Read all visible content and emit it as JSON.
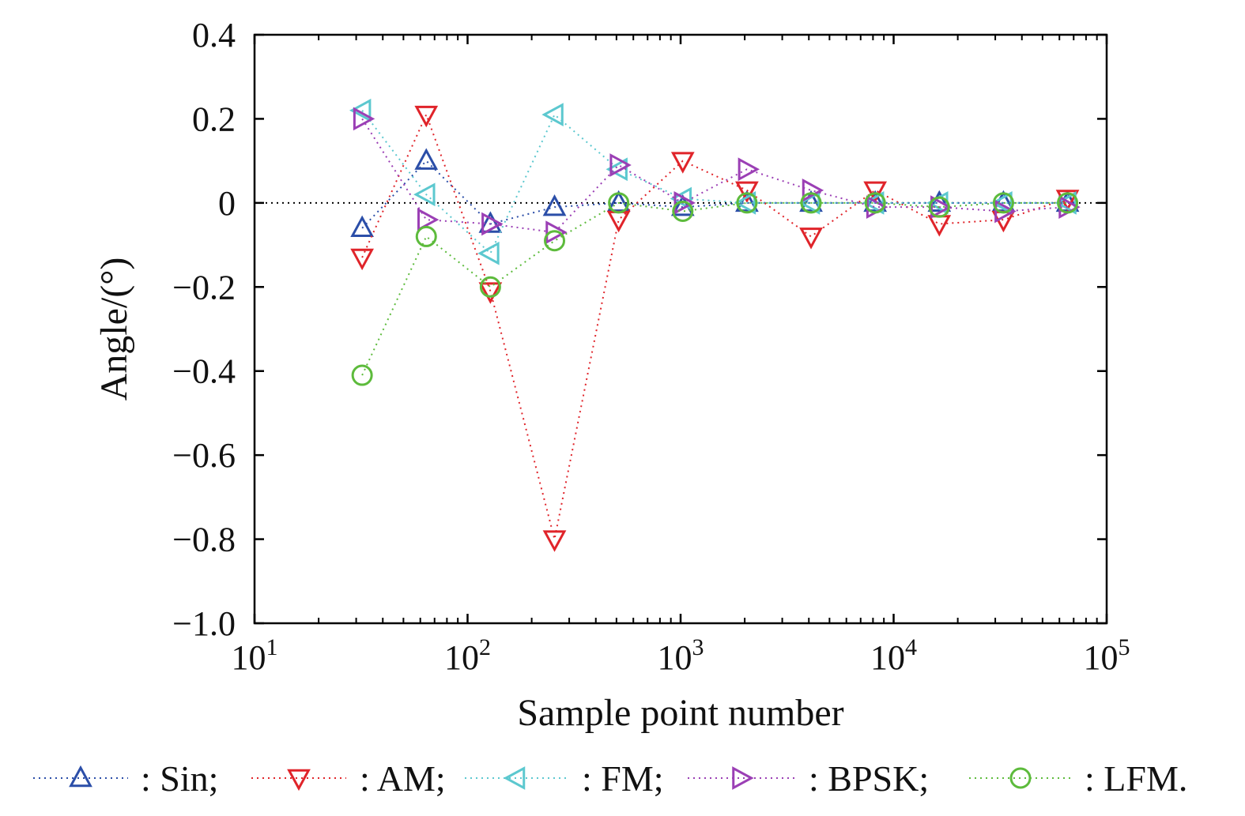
{
  "chart_data": {
    "type": "scatter",
    "title": "",
    "xlabel": "Sample point number",
    "ylabel": "Angle/(°)",
    "xscale": "log",
    "xlim": [
      10,
      100000
    ],
    "ylim": [
      -1.0,
      0.4
    ],
    "x_ticks": [
      {
        "value": 10,
        "base": "10",
        "exp": "1"
      },
      {
        "value": 100,
        "base": "10",
        "exp": "2"
      },
      {
        "value": 1000,
        "base": "10",
        "exp": "3"
      },
      {
        "value": 10000,
        "base": "10",
        "exp": "4"
      },
      {
        "value": 100000,
        "base": "10",
        "exp": "5"
      }
    ],
    "y_ticks": [
      {
        "value": 0.4,
        "label": "0.4"
      },
      {
        "value": 0.2,
        "label": "0.2"
      },
      {
        "value": 0,
        "label": "0"
      },
      {
        "value": -0.2,
        "label": "−0.2"
      },
      {
        "value": -0.4,
        "label": "−0.4"
      },
      {
        "value": -0.6,
        "label": "−0.6"
      },
      {
        "value": -0.8,
        "label": "−0.8"
      },
      {
        "value": -1.0,
        "label": "−1.0"
      }
    ],
    "reference_line": 0,
    "x": [
      32,
      64,
      128,
      256,
      512,
      1024,
      2048,
      4096,
      8192,
      16384,
      32768,
      65536
    ],
    "series": [
      {
        "name": "Sin",
        "legend": ": Sin;",
        "color": "#2b4ea8",
        "marker": "triangle-up",
        "values": [
          -0.06,
          0.1,
          -0.05,
          -0.01,
          0.0,
          -0.01,
          0.0,
          0.0,
          0.0,
          0.0,
          0.0,
          0.0
        ]
      },
      {
        "name": "AM",
        "legend": ": AM;",
        "color": "#e0242a",
        "marker": "triangle-down",
        "values": [
          -0.13,
          0.21,
          -0.21,
          -0.8,
          -0.04,
          0.1,
          0.03,
          -0.08,
          0.03,
          -0.05,
          -0.04,
          0.01
        ]
      },
      {
        "name": "FM",
        "legend": ": FM;",
        "color": "#5cc8cf",
        "marker": "triangle-left",
        "values": [
          0.22,
          0.02,
          -0.12,
          0.21,
          0.08,
          0.01,
          0.0,
          0.0,
          0.0,
          0.0,
          0.0,
          0.0
        ]
      },
      {
        "name": "BPSK",
        "legend": ": BPSK;",
        "color": "#9b3fb5",
        "marker": "triangle-right",
        "values": [
          0.2,
          -0.04,
          -0.05,
          -0.07,
          0.09,
          0.0,
          0.08,
          0.03,
          -0.01,
          -0.01,
          -0.02,
          -0.01
        ]
      },
      {
        "name": "LFM",
        "legend": ": LFM.",
        "color": "#5dbb3c",
        "marker": "circle",
        "values": [
          -0.41,
          -0.08,
          -0.2,
          -0.09,
          0.0,
          -0.02,
          0.0,
          0.0,
          0.0,
          -0.01,
          0.0,
          0.0
        ]
      }
    ],
    "legend_position": "bottom"
  }
}
